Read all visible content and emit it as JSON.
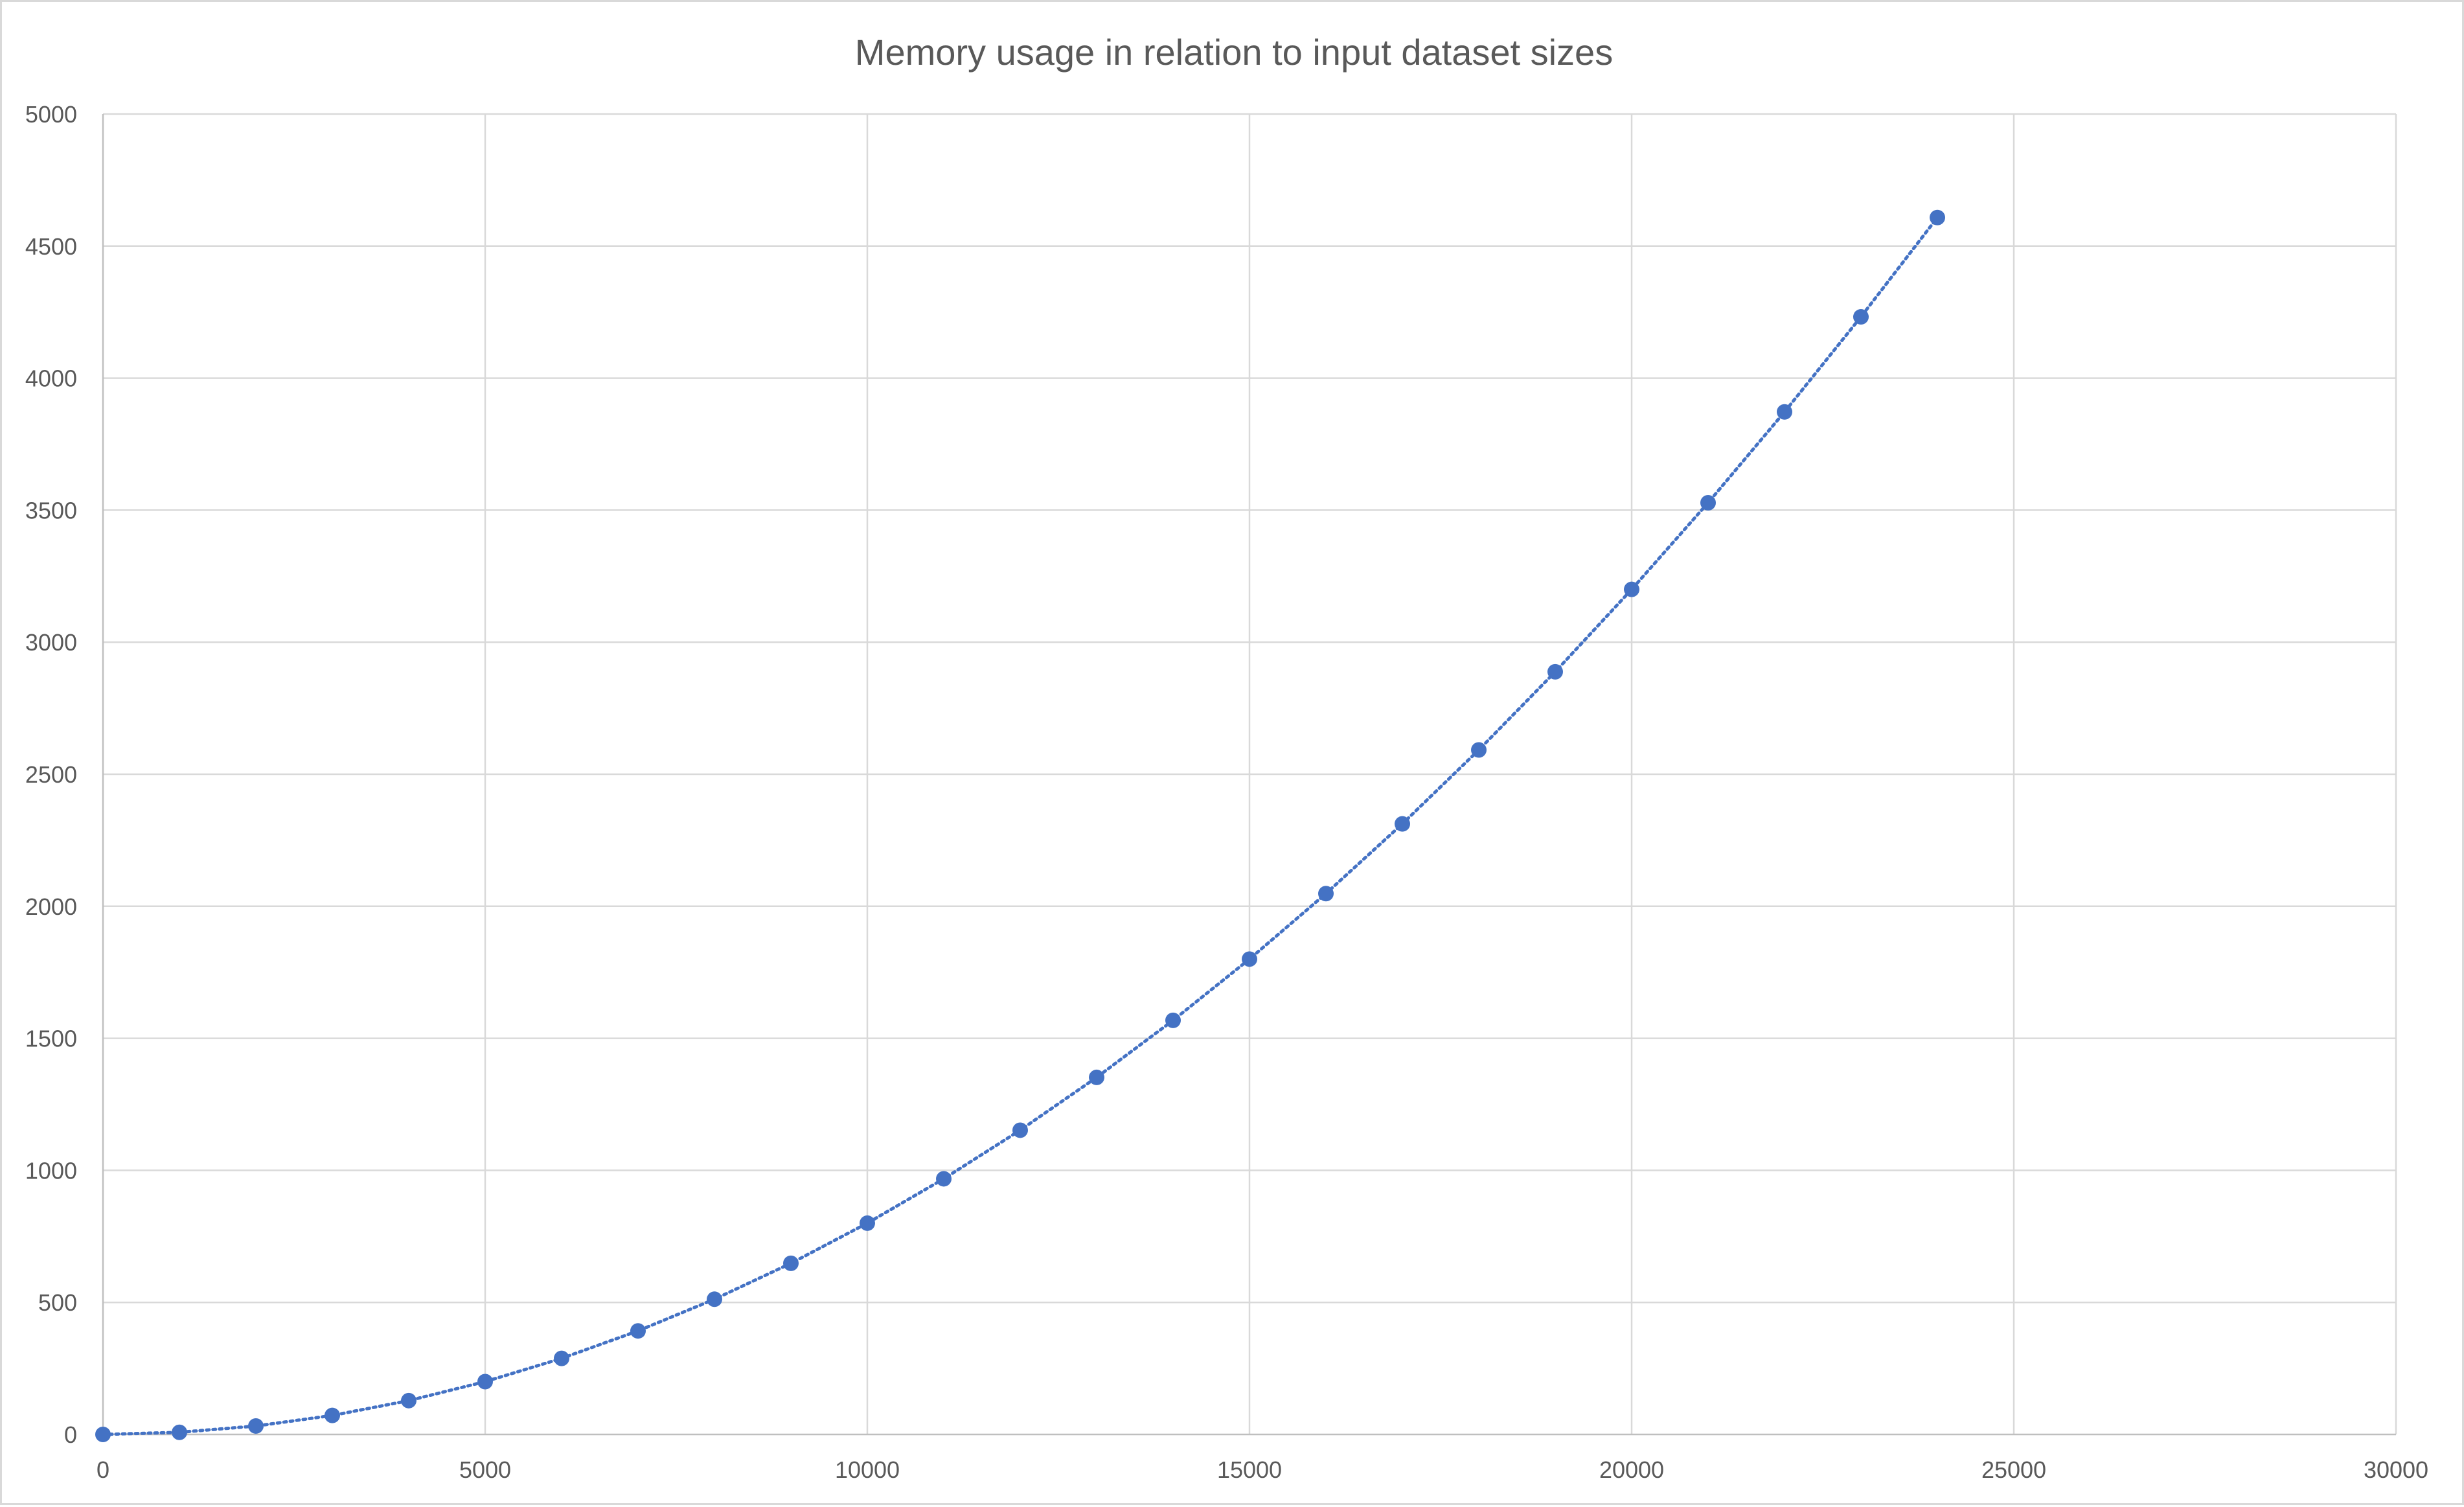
{
  "chart_data": {
    "type": "scatter",
    "title": "Memory usage in relation to input dataset sizes",
    "xlabel": "",
    "ylabel": "",
    "xlim": [
      0,
      30000
    ],
    "ylim": [
      0,
      5000
    ],
    "x_ticks": [
      0,
      5000,
      10000,
      15000,
      20000,
      25000,
      30000
    ],
    "y_ticks": [
      0,
      500,
      1000,
      1500,
      2000,
      2500,
      3000,
      3500,
      4000,
      4500,
      5000
    ],
    "grid": true,
    "legend": "none",
    "marker_color": "#4472C4",
    "line_style": "dotted",
    "series": [
      {
        "x": [
          0,
          1000,
          2000,
          3000,
          4000,
          5000,
          6000,
          7000,
          8000,
          9000,
          10000,
          11000,
          12000,
          13000,
          14000,
          15000,
          16000,
          17000,
          18000,
          19000,
          20000,
          21000,
          22000,
          23000,
          24000
        ],
        "y": [
          0,
          8,
          32,
          72,
          128,
          200,
          288,
          392,
          512,
          648,
          800,
          968,
          1152,
          1352,
          1568,
          1800,
          2048,
          2312,
          2592,
          2888,
          3200,
          3528,
          3872,
          4232,
          4608
        ]
      }
    ]
  }
}
